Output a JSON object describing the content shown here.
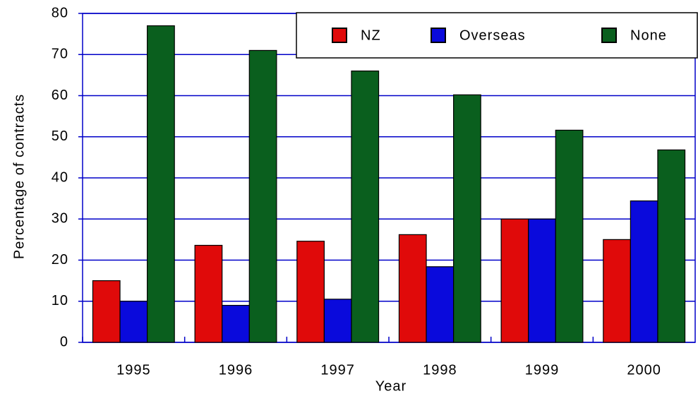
{
  "chart_data": {
    "type": "bar",
    "x_label": "Year",
    "y_label": "Percentage of contracts",
    "categories": [
      "1995",
      "1996",
      "1997",
      "1998",
      "1999",
      "2000"
    ],
    "series": [
      {
        "name": "NZ",
        "color": "#e00a0a",
        "values": [
          15,
          23.6,
          24.6,
          26.2,
          30,
          25
        ]
      },
      {
        "name": "Overseas",
        "color": "#0a0adc",
        "values": [
          10,
          9,
          10.5,
          18.4,
          30,
          34.4
        ]
      },
      {
        "name": "None",
        "color": "#0a5f1e",
        "values": [
          77,
          71,
          66,
          60.2,
          51.6,
          46.8
        ]
      }
    ],
    "ylim": [
      0,
      80
    ],
    "yticks": [
      0,
      10,
      20,
      30,
      40,
      50,
      60,
      70,
      80
    ],
    "grid": true,
    "legend": "upper right"
  }
}
